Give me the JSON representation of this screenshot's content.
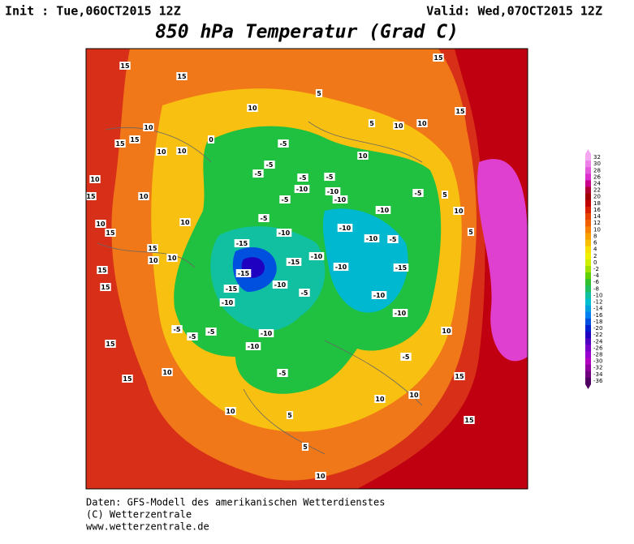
{
  "header": {
    "init": "Init : Tue,06OCT2015 12Z",
    "valid": "Valid: Wed,07OCT2015 12Z",
    "title": "850 hPa Temperatur (Grad C)"
  },
  "legend": {
    "levels": [
      32,
      30,
      28,
      26,
      24,
      22,
      20,
      18,
      16,
      14,
      12,
      10,
      8,
      6,
      4,
      2,
      0,
      -2,
      -4,
      -6,
      -8,
      -10,
      -12,
      -14,
      -16,
      -18,
      -20,
      -22,
      -24,
      -26,
      -28,
      -30,
      -32,
      -34,
      -36
    ],
    "colors": [
      "#f4a8f0",
      "#ec80e8",
      "#e458dc",
      "#dc30cc",
      "#c8008c",
      "#b00030",
      "#a00000",
      "#c00000",
      "#d82000",
      "#e84400",
      "#f06000",
      "#f88000",
      "#f8a000",
      "#f8c000",
      "#f8e000",
      "#f0f000",
      "#d0f000",
      "#a0e000",
      "#60d000",
      "#30c030",
      "#20c060",
      "#10c0a0",
      "#00c0d0",
      "#00a0e0",
      "#0080f0",
      "#0050e0",
      "#0020d0",
      "#2000c0",
      "#5000c0",
      "#7800c8",
      "#9800d0",
      "#b000c0",
      "#9000a0",
      "#700080",
      "#500060"
    ]
  },
  "map": {
    "contour_labels": [
      15,
      15,
      15,
      5,
      10,
      10,
      15,
      15,
      10,
      10,
      0,
      -5,
      -5,
      -5,
      -5,
      -5,
      -10,
      -10,
      -5,
      -10,
      -10,
      -5,
      -5,
      -10,
      -10,
      -10,
      -5,
      -15,
      -15,
      -10,
      -15,
      -10,
      -15,
      -15,
      -10,
      -10,
      -10,
      -5,
      -10,
      -5,
      -10,
      -10,
      -5,
      -5,
      -5,
      -5,
      10,
      10,
      10,
      15,
      15,
      10,
      10,
      5,
      5,
      10,
      10,
      10,
      15,
      15,
      10,
      10,
      5,
      5,
      15,
      10,
      10,
      5,
      10,
      10,
      10,
      15,
      15,
      15,
      15,
      10,
      15
    ]
  },
  "footer": {
    "lines": [
      "Daten: GFS-Modell des amerikanischen Wetterdienstes",
      "(C) Wetterzentrale",
      "www.wetterzentrale.de"
    ]
  }
}
